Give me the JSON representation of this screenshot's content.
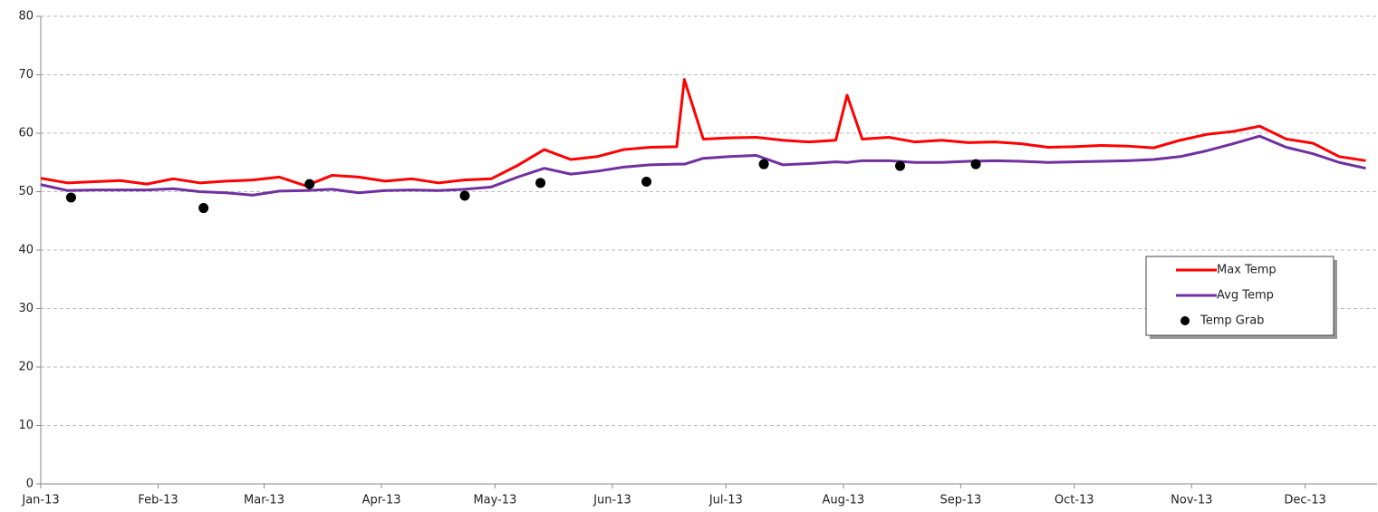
{
  "chart_data": {
    "type": "line",
    "x": [
      0,
      7,
      14,
      21,
      28,
      35,
      42,
      49,
      56,
      63,
      70,
      77,
      84,
      91,
      98,
      105,
      112,
      119,
      126,
      133,
      140,
      147,
      154,
      161,
      168,
      170,
      175,
      182,
      189,
      196,
      203,
      210,
      213,
      217,
      224,
      231,
      238,
      245,
      252,
      259,
      266,
      273,
      280,
      287,
      294,
      301,
      308,
      315,
      322,
      329,
      336,
      343,
      350
    ],
    "series": [
      {
        "name": "Max Temp",
        "color": "#ff0000",
        "kind": "line",
        "values": [
          52.3,
          51.5,
          51.7,
          51.9,
          51.3,
          52.2,
          51.5,
          51.8,
          52.0,
          52.5,
          51.0,
          52.8,
          52.5,
          51.8,
          52.2,
          51.5,
          52.0,
          52.2,
          54.5,
          57.2,
          55.5,
          56.0,
          57.2,
          57.6,
          57.7,
          69.2,
          59.0,
          59.2,
          59.3,
          58.8,
          58.5,
          58.8,
          66.5,
          59.0,
          59.3,
          58.5,
          58.8,
          58.4,
          58.5,
          58.2,
          57.6,
          57.7,
          57.9,
          57.8,
          57.5,
          58.8,
          59.8,
          60.3,
          61.2,
          59.0,
          58.3,
          56.0,
          55.3
        ]
      },
      {
        "name": "Avg Temp",
        "color": "#7030a0",
        "kind": "line",
        "values": [
          51.2,
          50.2,
          50.3,
          50.3,
          50.3,
          50.5,
          50.0,
          49.8,
          49.4,
          50.1,
          50.2,
          50.4,
          49.8,
          50.2,
          50.3,
          50.2,
          50.4,
          50.8,
          52.5,
          54.0,
          53.0,
          53.5,
          54.2,
          54.6,
          54.7,
          54.7,
          55.7,
          56.0,
          56.2,
          54.6,
          54.8,
          55.1,
          55.0,
          55.3,
          55.3,
          55.0,
          55.0,
          55.2,
          55.3,
          55.2,
          55.0,
          55.1,
          55.2,
          55.3,
          55.5,
          56.0,
          57.0,
          58.2,
          59.5,
          57.6,
          56.5,
          55.0,
          54.0
        ]
      },
      {
        "name": "Temp Grab",
        "color": "#000000",
        "kind": "scatter",
        "x": [
          8,
          43,
          71,
          112,
          132,
          160,
          191,
          227,
          247
        ],
        "values": [
          49.0,
          47.2,
          51.3,
          49.3,
          51.5,
          51.7,
          54.7,
          54.4,
          54.7
        ]
      }
    ],
    "xlim": [
      0,
      353
    ],
    "xticks": [
      {
        "value": 0,
        "label": "Jan-13"
      },
      {
        "value": 31,
        "label": "Feb-13"
      },
      {
        "value": 59,
        "label": "Mar-13"
      },
      {
        "value": 90,
        "label": "Apr-13"
      },
      {
        "value": 120,
        "label": "May-13"
      },
      {
        "value": 151,
        "label": "Jun-13"
      },
      {
        "value": 181,
        "label": "Jul-13"
      },
      {
        "value": 212,
        "label": "Aug-13"
      },
      {
        "value": 243,
        "label": "Sep-13"
      },
      {
        "value": 273,
        "label": "Oct-13"
      },
      {
        "value": 304,
        "label": "Nov-13"
      },
      {
        "value": 334,
        "label": "Dec-13"
      }
    ],
    "ylim": [
      0,
      80
    ],
    "yticks": [
      0,
      10,
      20,
      30,
      40,
      50,
      60,
      70,
      80
    ],
    "grid": true,
    "legend": "right"
  }
}
